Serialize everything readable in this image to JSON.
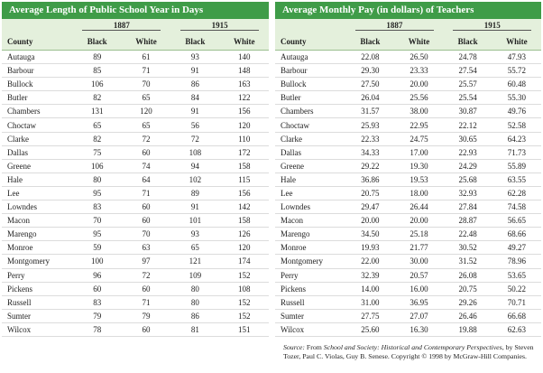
{
  "tables": [
    {
      "title": "Average Length of Public School Year in Days",
      "years": [
        "1887",
        "1915"
      ],
      "columns": [
        "County",
        "Black",
        "White",
        "Black",
        "White"
      ],
      "rows": [
        [
          "Autauga",
          "89",
          "61",
          "93",
          "140"
        ],
        [
          "Barbour",
          "85",
          "71",
          "91",
          "148"
        ],
        [
          "Bullock",
          "106",
          "70",
          "86",
          "163"
        ],
        [
          "Butler",
          "82",
          "65",
          "84",
          "122"
        ],
        [
          "Chambers",
          "131",
          "120",
          "91",
          "156"
        ],
        [
          "Choctaw",
          "65",
          "65",
          "56",
          "120"
        ],
        [
          "Clarke",
          "82",
          "72",
          "72",
          "110"
        ],
        [
          "Dallas",
          "75",
          "60",
          "108",
          "172"
        ],
        [
          "Greene",
          "106",
          "74",
          "94",
          "158"
        ],
        [
          "Hale",
          "80",
          "64",
          "102",
          "115"
        ],
        [
          "Lee",
          "95",
          "71",
          "89",
          "156"
        ],
        [
          "Lowndes",
          "83",
          "60",
          "91",
          "142"
        ],
        [
          "Macon",
          "70",
          "60",
          "101",
          "158"
        ],
        [
          "Marengo",
          "95",
          "70",
          "93",
          "126"
        ],
        [
          "Monroe",
          "59",
          "63",
          "65",
          "120"
        ],
        [
          "Montgomery",
          "100",
          "97",
          "121",
          "174"
        ],
        [
          "Perry",
          "96",
          "72",
          "109",
          "152"
        ],
        [
          "Pickens",
          "60",
          "60",
          "80",
          "108"
        ],
        [
          "Russell",
          "83",
          "71",
          "80",
          "152"
        ],
        [
          "Sumter",
          "79",
          "79",
          "86",
          "152"
        ],
        [
          "Wilcox",
          "78",
          "60",
          "81",
          "151"
        ]
      ]
    },
    {
      "title": "Average Monthly Pay (in dollars) of Teachers",
      "years": [
        "1887",
        "1915"
      ],
      "columns": [
        "County",
        "Black",
        "White",
        "Black",
        "White"
      ],
      "rows": [
        [
          "Autauga",
          "22.08",
          "26.50",
          "24.78",
          "47.93"
        ],
        [
          "Barbour",
          "29.30",
          "23.33",
          "27.54",
          "55.72"
        ],
        [
          "Bullock",
          "27.50",
          "20.00",
          "25.57",
          "60.48"
        ],
        [
          "Butler",
          "26.04",
          "25.56",
          "25.54",
          "55.30"
        ],
        [
          "Chambers",
          "31.57",
          "38.00",
          "30.87",
          "49.76"
        ],
        [
          "Choctaw",
          "25.93",
          "22.95",
          "22.12",
          "52.58"
        ],
        [
          "Clarke",
          "22.33",
          "24.75",
          "30.65",
          "64.23"
        ],
        [
          "Dallas",
          "34.33",
          "17.00",
          "22.93",
          "71.73"
        ],
        [
          "Greene",
          "29.22",
          "19.30",
          "24.29",
          "55.89"
        ],
        [
          "Hale",
          "36.86",
          "19.53",
          "25.68",
          "63.55"
        ],
        [
          "Lee",
          "20.75",
          "18.00",
          "32.93",
          "62.28"
        ],
        [
          "Lowndes",
          "29.47",
          "26.44",
          "27.84",
          "74.58"
        ],
        [
          "Macon",
          "20.00",
          "20.00",
          "28.87",
          "56.65"
        ],
        [
          "Marengo",
          "34.50",
          "25.18",
          "22.48",
          "68.66"
        ],
        [
          "Monroe",
          "19.93",
          "21.77",
          "30.52",
          "49.27"
        ],
        [
          "Montgomery",
          "22.00",
          "30.00",
          "31.52",
          "78.96"
        ],
        [
          "Perry",
          "32.39",
          "20.57",
          "26.08",
          "53.65"
        ],
        [
          "Pickens",
          "14.00",
          "16.00",
          "20.75",
          "50.22"
        ],
        [
          "Russell",
          "31.00",
          "36.95",
          "29.26",
          "70.71"
        ],
        [
          "Sumter",
          "27.75",
          "27.07",
          "26.46",
          "66.68"
        ],
        [
          "Wilcox",
          "25.60",
          "16.30",
          "19.88",
          "62.63"
        ]
      ]
    }
  ],
  "source": {
    "label": "Source:",
    "from": " From ",
    "book": "School and Society: Historical and Contemporary Perspectives",
    "rest": ", by Steven Tozer, Paul C. Violas, Guy B. Senese. Copyright © 1998 by McGraw-Hill Companies."
  }
}
